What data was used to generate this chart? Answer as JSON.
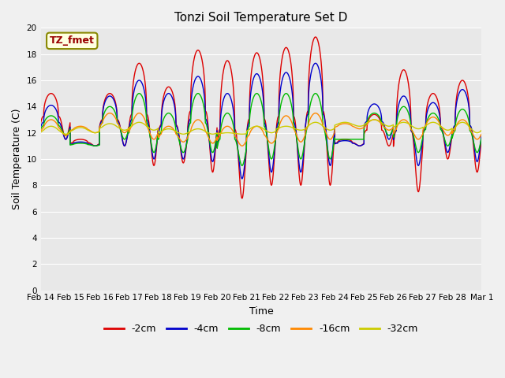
{
  "title": "Tonzi Soil Temperature Set D",
  "xlabel": "Time",
  "ylabel": "Soil Temperature (C)",
  "ylim": [
    0,
    20
  ],
  "yticks": [
    0,
    2,
    4,
    6,
    8,
    10,
    12,
    14,
    16,
    18,
    20
  ],
  "fig_bg": "#f0f0f0",
  "plot_bg": "#e8e8e8",
  "colors": {
    "-2cm": "#dd0000",
    "-4cm": "#0000cc",
    "-8cm": "#00bb00",
    "-16cm": "#ff8800",
    "-32cm": "#cccc00"
  },
  "legend_label_box": "TZ_fmet",
  "series_labels": [
    "-2cm",
    "-4cm",
    "-8cm",
    "-16cm",
    "-32cm"
  ],
  "red_peaks": [
    15.0,
    11.5,
    15.0,
    17.3,
    15.5,
    18.3,
    17.5,
    18.1,
    18.5,
    19.3,
    11.5,
    13.4,
    16.8,
    15.0,
    16.0
  ],
  "red_troughs": [
    11.5,
    11.0,
    11.0,
    9.5,
    9.7,
    9.0,
    7.0,
    8.0,
    8.0,
    8.0,
    11.0,
    11.0,
    7.5,
    10.0,
    9.0
  ],
  "blue_peaks": [
    14.1,
    11.3,
    14.8,
    16.0,
    15.0,
    16.3,
    15.0,
    16.5,
    16.6,
    17.3,
    11.4,
    14.2,
    14.8,
    14.3,
    15.3
  ],
  "blue_troughs": [
    11.5,
    11.0,
    11.0,
    10.0,
    10.0,
    9.8,
    8.5,
    9.0,
    9.0,
    9.5,
    11.0,
    11.5,
    9.5,
    10.5,
    9.8
  ],
  "green_peaks": [
    13.3,
    11.2,
    14.0,
    15.0,
    13.5,
    15.0,
    13.5,
    15.0,
    15.0,
    15.0,
    11.5,
    13.5,
    14.0,
    13.5,
    13.8
  ],
  "green_troughs": [
    11.8,
    11.0,
    11.5,
    10.5,
    10.5,
    10.5,
    9.5,
    10.0,
    10.0,
    10.0,
    11.5,
    11.8,
    10.5,
    11.0,
    10.5
  ],
  "orange_peaks": [
    13.0,
    12.5,
    13.5,
    13.5,
    12.5,
    13.0,
    12.5,
    12.5,
    13.3,
    13.5,
    12.7,
    13.0,
    13.0,
    13.2,
    13.0
  ],
  "orange_troughs": [
    11.8,
    12.0,
    12.0,
    11.5,
    11.3,
    11.2,
    11.0,
    11.2,
    11.3,
    11.5,
    12.3,
    12.2,
    11.5,
    11.8,
    11.5
  ],
  "yellow_peaks": [
    12.5,
    12.4,
    12.7,
    12.8,
    12.3,
    12.3,
    12.0,
    12.5,
    12.5,
    12.8,
    12.8,
    13.0,
    12.8,
    12.8,
    12.8
  ],
  "yellow_troughs": [
    11.9,
    12.0,
    12.2,
    12.2,
    11.9,
    11.9,
    11.9,
    12.0,
    12.2,
    12.2,
    12.5,
    12.5,
    12.3,
    12.2,
    12.0
  ],
  "peak_phase": 0.35,
  "n_days": 15
}
